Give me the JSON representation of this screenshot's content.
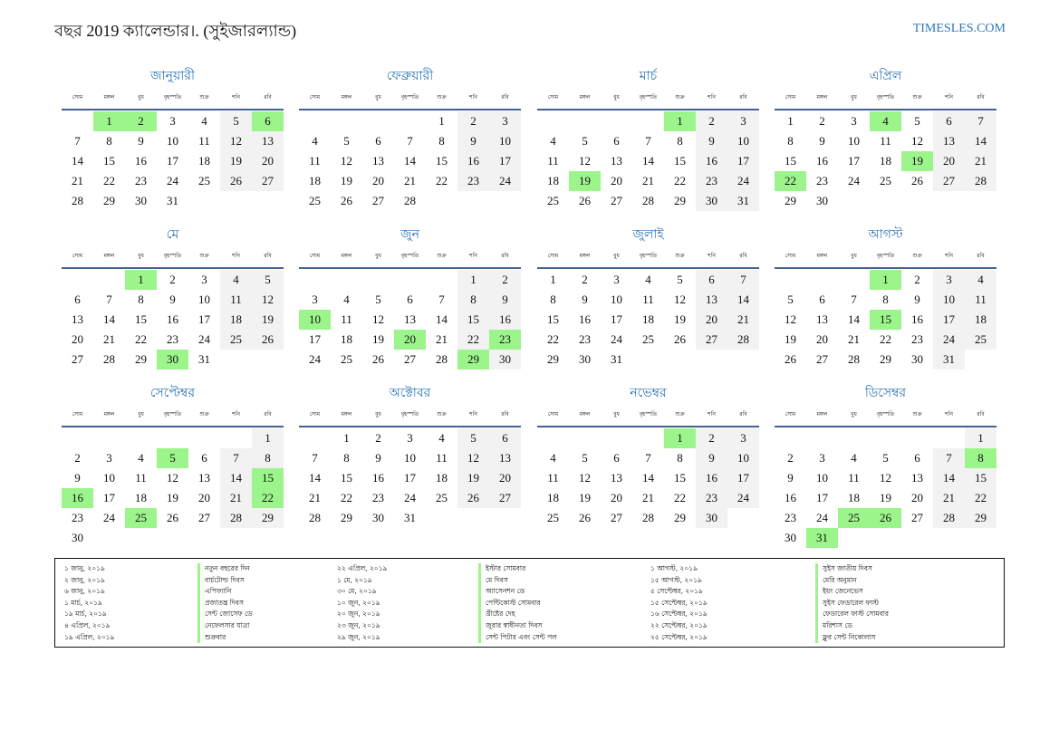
{
  "header": {
    "title": "বছর 2019 ক্যালেন্ডার।. (সুইজারল্যান্ড)",
    "site": "TIMESLES.COM"
  },
  "weekdays": [
    "সোম",
    "মঙ্গল",
    "বুধ",
    "বৃহস্পতি",
    "শুক্র",
    "শনি",
    "রবি"
  ],
  "months": [
    {
      "name": "জানুয়ারী",
      "offset": 1,
      "days": 31,
      "holidays": [
        1,
        2,
        6
      ]
    },
    {
      "name": "ফেব্রুয়ারী",
      "offset": 4,
      "days": 28,
      "holidays": []
    },
    {
      "name": "মার্চ",
      "offset": 4,
      "days": 31,
      "holidays": [
        1,
        19
      ]
    },
    {
      "name": "এপ্রিল",
      "offset": 0,
      "days": 30,
      "holidays": [
        4,
        19,
        22
      ]
    },
    {
      "name": "মে",
      "offset": 2,
      "days": 31,
      "holidays": [
        1,
        30
      ]
    },
    {
      "name": "জুন",
      "offset": 5,
      "days": 30,
      "holidays": [
        10,
        20,
        23,
        29
      ]
    },
    {
      "name": "জুলাই",
      "offset": 0,
      "days": 31,
      "holidays": []
    },
    {
      "name": "আগস্ট",
      "offset": 3,
      "days": 31,
      "holidays": [
        1,
        15
      ]
    },
    {
      "name": "সেপ্টেম্বর",
      "offset": 6,
      "days": 30,
      "holidays": [
        5,
        15,
        16,
        22,
        25
      ]
    },
    {
      "name": "অক্টোবর",
      "offset": 1,
      "days": 31,
      "holidays": []
    },
    {
      "name": "নভেম্বর",
      "offset": 4,
      "days": 30,
      "holidays": [
        1
      ]
    },
    {
      "name": "ডিসেম্বর",
      "offset": 6,
      "days": 31,
      "holidays": [
        8,
        25,
        26,
        31
      ]
    }
  ],
  "holiday_list": [
    {
      "dates": [
        "১ জানু, ২০১৯",
        "২ জানু, ২০১৯",
        "৬ জানু, ২০১৯",
        "১ মার্চ, ২০১৯",
        "১৯ মার্চ, ২০১৯",
        "৪ এপ্রিল, ২০১৯",
        "১৯ এপ্রিল, ২০১৯"
      ],
      "names": [
        "নতুন বছরের দিন",
        "বার্চটোল্ড দিবস",
        "এপিফ্যানি",
        "প্রজাতন্ত্র দিবস",
        "সেন্ট জোসেফ ডে",
        "নেফেলসার যাত্রা",
        "শুক্রবার"
      ]
    },
    {
      "dates": [
        "২২ এপ্রিল, ২০১৯",
        "১ মে, ২০১৯",
        "৩০ মে, ২০১৯",
        "১০ জুন, ২০১৯",
        "২০ জুন, ২০১৯",
        "২৩ জুন, ২০১৯",
        "২৯ জুন, ২০১৯"
      ],
      "names": [
        "ইস্টার সোমবার",
        "মে দিবস",
        "অ্যাসেনশন ডে",
        "পেন্টিকোস্ট সোমবার",
        "খ্রীষ্টের দেহ",
        "জুরার স্বাধীনতা দিবস",
        "সেন্ট পিটার এবং সেন্ট পল"
      ]
    },
    {
      "dates": [
        "১ আগস্ট, ২০১৯",
        "১৫ আগস্ট, ২০১৯",
        "৫ সেপ্টেম্বর, ২০১৯",
        "১৫ সেপ্টেম্বর, ২০১৯",
        "১৬ সেপ্টেম্বর, ২০১৯",
        "২২ সেপ্টেম্বর, ২০১৯",
        "২৫ সেপ্টেম্বর, ২০১৯"
      ],
      "names": [
        "সুইস জাতীয় দিবস",
        "মেরি অনুমান",
        "ইয়ং জেনেভেস",
        "সুইস ফেডারেল ফাস্ট",
        "ফেডারেল ফাস্ট সোমবার",
        "মরিশাস ডে",
        "ফ্লুর সেন্ট নিকোলাস"
      ]
    }
  ]
}
